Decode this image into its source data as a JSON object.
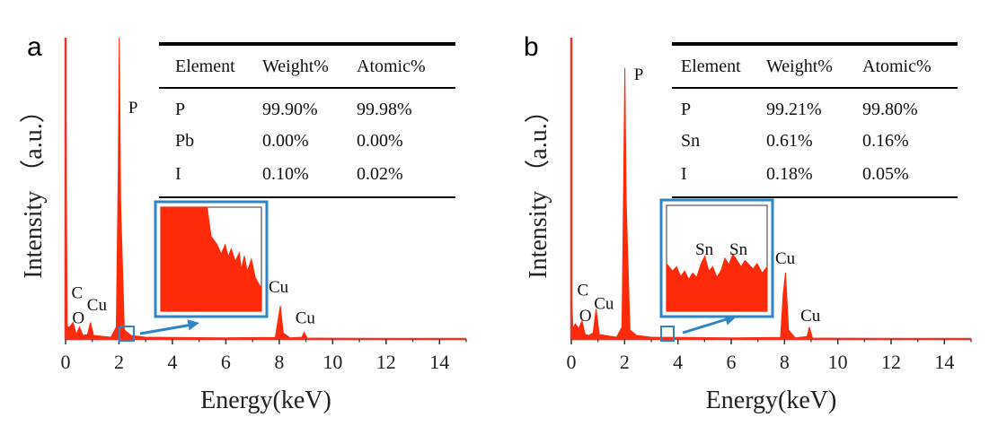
{
  "colors": {
    "spectrum": "#ff2a0a",
    "frame": "#e8342a",
    "inset_border": "#2f86c6",
    "arrow": "#2f86c6"
  },
  "chart_data": [
    {
      "type": "area",
      "panel_label": "a",
      "xlabel": "Energy(keV)",
      "ylabel": "Intensity （a.u.）",
      "xlim": [
        0,
        15
      ],
      "ylim": [
        0,
        100
      ],
      "xticks": [
        "0",
        "2",
        "4",
        "6",
        "8",
        "10",
        "12",
        "14"
      ],
      "grid": false,
      "series": [
        {
          "values": [
            [
              0,
              0
            ],
            [
              0.02,
              72
            ],
            [
              0.06,
              4
            ],
            [
              0.15,
              4
            ],
            [
              0.28,
              5.5
            ],
            [
              0.4,
              1.5
            ],
            [
              0.52,
              4
            ],
            [
              0.65,
              1.2
            ],
            [
              0.82,
              1.5
            ],
            [
              0.93,
              5.5
            ],
            [
              1.05,
              1.2
            ],
            [
              1.7,
              0.6
            ],
            [
              1.9,
              4
            ],
            [
              1.97,
              55
            ],
            [
              2.01,
              100
            ],
            [
              2.06,
              45
            ],
            [
              2.2,
              3
            ],
            [
              2.45,
              1.2
            ],
            [
              3.0,
              0.6
            ],
            [
              6.0,
              0.4
            ],
            [
              7.85,
              0.5
            ],
            [
              7.95,
              6
            ],
            [
              8.04,
              11
            ],
            [
              8.15,
              2
            ],
            [
              8.4,
              0.4
            ],
            [
              8.85,
              0.6
            ],
            [
              8.93,
              2.2
            ],
            [
              9.05,
              0.3
            ],
            [
              15,
              0
            ]
          ]
        }
      ],
      "peak_labels": [
        {
          "text": "P",
          "x": 2.35,
          "y": 75
        },
        {
          "text": "C",
          "x": 0.22,
          "y": 13.5
        },
        {
          "text": "Cu",
          "x": 0.8,
          "y": 9.5
        },
        {
          "text": "O",
          "x": 0.25,
          "y": 5.2
        },
        {
          "text": "Cu",
          "x": 7.6,
          "y": 15.5
        },
        {
          "text": "Cu",
          "x": 8.6,
          "y": 5.2
        }
      ],
      "table": {
        "headers": [
          "Element",
          "Weight%",
          "Atomic%"
        ],
        "rows": [
          [
            "P",
            "99.90%",
            "99.98%"
          ],
          [
            "Pb",
            "0.00%",
            "0.00%"
          ],
          [
            "I",
            "0.10%",
            "0.02%"
          ]
        ]
      },
      "inset": {
        "region_x": [
          2.1,
          2.55
        ],
        "peak_labels": []
      }
    },
    {
      "type": "area",
      "panel_label": "b",
      "xlabel": "Energy(keV)",
      "ylabel": "Intensity （a.u.）",
      "xlim": [
        0,
        15
      ],
      "ylim": [
        0,
        100
      ],
      "xticks": [
        "0",
        "2",
        "4",
        "6",
        "8",
        "10",
        "12",
        "14"
      ],
      "grid": false,
      "series": [
        {
          "values": [
            [
              0,
              0
            ],
            [
              0.02,
              12
            ],
            [
              0.06,
              3.5
            ],
            [
              0.15,
              5
            ],
            [
              0.28,
              3.5
            ],
            [
              0.4,
              6
            ],
            [
              0.52,
              1.5
            ],
            [
              0.65,
              1.2
            ],
            [
              0.82,
              2
            ],
            [
              0.93,
              10
            ],
            [
              1.05,
              1.5
            ],
            [
              1.7,
              0.6
            ],
            [
              1.9,
              4
            ],
            [
              1.97,
              55
            ],
            [
              2.01,
              90
            ],
            [
              2.06,
              45
            ],
            [
              2.2,
              3
            ],
            [
              2.45,
              1.2
            ],
            [
              3.0,
              0.6
            ],
            [
              6.0,
              0.4
            ],
            [
              7.85,
              0.5
            ],
            [
              7.95,
              15
            ],
            [
              8.04,
              22
            ],
            [
              8.15,
              3
            ],
            [
              8.4,
              0.4
            ],
            [
              8.85,
              0.8
            ],
            [
              8.93,
              4
            ],
            [
              9.05,
              0.3
            ],
            [
              15,
              0
            ]
          ]
        }
      ],
      "peak_labels": [
        {
          "text": "P",
          "x": 2.35,
          "y": 86
        },
        {
          "text": "C",
          "x": 0.22,
          "y": 14.5
        },
        {
          "text": "Cu",
          "x": 0.85,
          "y": 10
        },
        {
          "text": "O",
          "x": 0.3,
          "y": 6
        },
        {
          "text": "Cu",
          "x": 7.65,
          "y": 25
        },
        {
          "text": "Cu",
          "x": 8.6,
          "y": 6
        }
      ],
      "table": {
        "headers": [
          "Element",
          "Weight%",
          "Atomic%"
        ],
        "rows": [
          [
            "P",
            "99.21%",
            "99.80%"
          ],
          [
            "Sn",
            "0.61%",
            "0.16%"
          ],
          [
            "I",
            "0.18%",
            "0.05%"
          ]
        ]
      },
      "inset": {
        "region_x": [
          3.45,
          3.95
        ],
        "peak_labels": [
          {
            "text": "Sn"
          },
          {
            "text": "Sn"
          }
        ]
      }
    }
  ]
}
